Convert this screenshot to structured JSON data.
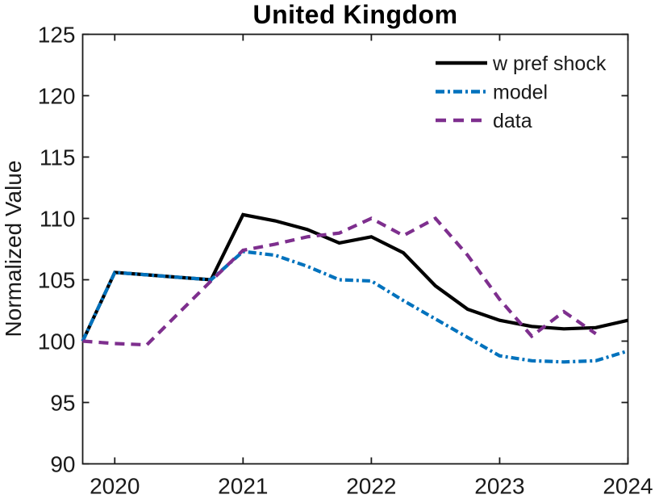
{
  "figure": {
    "background": "#ffffff",
    "axis_color": "#1a1a1a",
    "text_color": "#1a1a1a"
  },
  "chart_data": {
    "type": "line",
    "title": "United Kingdom",
    "xlabel": "",
    "ylabel": "Normalized Value",
    "xlim": [
      2019.75,
      2024
    ],
    "ylim": [
      90,
      125
    ],
    "xticks": [
      2020,
      2021,
      2022,
      2023,
      2024
    ],
    "xtick_labels": [
      "2020",
      "2021",
      "2022",
      "2023",
      "2024"
    ],
    "yticks": [
      90,
      95,
      100,
      105,
      110,
      115,
      120,
      125
    ],
    "ytick_labels": [
      "90",
      "95",
      "100",
      "105",
      "110",
      "115",
      "120",
      "125"
    ],
    "grid": false,
    "legend": {
      "position": "northeast",
      "box": false
    },
    "x": [
      2019.75,
      2020,
      2020.25,
      2020.5,
      2020.75,
      2021,
      2021.25,
      2021.5,
      2021.75,
      2022,
      2022.25,
      2022.5,
      2022.75,
      2023,
      2023.25,
      2023.5,
      2023.75,
      2024
    ],
    "series": [
      {
        "name": "w pref shock",
        "color": "#000000",
        "style": "solid",
        "values": [
          100,
          105.6,
          105.4,
          105.2,
          105.0,
          110.3,
          109.8,
          109.1,
          108.0,
          108.5,
          107.2,
          104.5,
          102.6,
          101.7,
          101.2,
          101.0,
          101.1,
          101.7
        ]
      },
      {
        "name": "model",
        "color": "#0072BD",
        "style": "dash-dot",
        "values": [
          100,
          105.6,
          105.4,
          105.2,
          105.0,
          107.3,
          107.0,
          106.1,
          105.0,
          104.9,
          103.3,
          101.8,
          100.3,
          98.8,
          98.4,
          98.3,
          98.4,
          99.2
        ]
      },
      {
        "name": "data",
        "color": "#7E2F8E",
        "style": "dashed",
        "values": [
          100,
          99.8,
          99.7,
          102.3,
          104.9,
          107.4,
          107.9,
          108.5,
          108.8,
          110.0,
          108.6,
          110.0,
          107.0,
          103.4,
          100.4,
          102.4,
          100.6,
          null
        ]
      }
    ]
  }
}
